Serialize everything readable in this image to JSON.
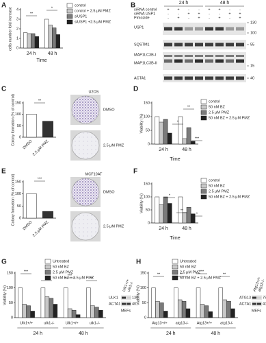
{
  "chart_data": [
    {
      "type": "bar",
      "panel": "A",
      "ylabel": "cells number fold increase",
      "xlabel": "Time",
      "categories": [
        "24 h",
        "48 h"
      ],
      "series": [
        {
          "name": "control",
          "color": "#ffffff",
          "values": [
            1.6,
            3.0
          ]
        },
        {
          "name": "control + 2.5 μM PMZ",
          "color": "#c8c8c8",
          "values": [
            1.5,
            2.4
          ]
        },
        {
          "name": "siUSP1",
          "color": "#7a7a7a",
          "values": [
            1.5,
            2.1
          ]
        },
        {
          "name": "siUSP1 +2.5 μM PMZ",
          "color": "#222222",
          "values": [
            1.2,
            1.4
          ]
        }
      ],
      "ylim": [
        0,
        4
      ],
      "yticks": [
        0,
        1,
        2,
        3,
        4
      ],
      "annotations": [
        "**",
        "*"
      ]
    },
    {
      "type": "bar",
      "panel": "C",
      "ylabel": "Colony formation (% of control)",
      "categories": [
        "DMSO",
        "2.5 μM PMZ"
      ],
      "values": [
        100,
        70
      ],
      "colors": [
        "#ffffff",
        "#333333"
      ],
      "ylim": [
        0,
        150
      ],
      "yticks": [
        0,
        50,
        100,
        150
      ],
      "annotations": [
        "**"
      ],
      "images": {
        "cell_line": "U2OS",
        "labels": [
          "DMSO",
          "2.5 μM PMZ"
        ]
      }
    },
    {
      "type": "bar",
      "panel": "D",
      "ylabel": "Viability (%)",
      "xlabel": "Time",
      "categories": [
        "24 h",
        "48 h"
      ],
      "series": [
        {
          "name": "control",
          "color": "#ffffff",
          "values": [
            100,
            100
          ]
        },
        {
          "name": "50 nM BZ",
          "color": "#c8c8c8",
          "values": [
            80,
            20
          ]
        },
        {
          "name": "2.5 μM PMZ",
          "color": "#7a7a7a",
          "values": [
            90,
            60
          ]
        },
        {
          "name": "50 nM BZ + 2.5 μM PMZ",
          "color": "#222222",
          "values": [
            40,
            10
          ]
        }
      ],
      "ylim": [
        0,
        150
      ],
      "yticks": [
        0,
        50,
        100,
        150
      ],
      "annotations": [
        "*",
        "**",
        "***"
      ]
    },
    {
      "type": "bar",
      "panel": "E",
      "ylabel": "Colony formation (% of control)",
      "categories": [
        "DMSO",
        "2.5 μM PMZ"
      ],
      "values": [
        100,
        28
      ],
      "colors": [
        "#ffffff",
        "#333333"
      ],
      "ylim": [
        0,
        150
      ],
      "yticks": [
        0,
        50,
        100,
        150
      ],
      "annotations": [
        "***"
      ],
      "images": {
        "cell_line": "MCF10AT",
        "labels": [
          "DMSO",
          "2.5 μM PMZ"
        ]
      }
    },
    {
      "type": "bar",
      "panel": "F",
      "ylabel": "Viability (%)",
      "xlabel": "Time",
      "categories": [
        "24 h",
        "48 h"
      ],
      "series": [
        {
          "name": "control",
          "color": "#ffffff",
          "values": [
            100,
            100
          ]
        },
        {
          "name": "50 nM BZ",
          "color": "#c8c8c8",
          "values": [
            70,
            40
          ]
        },
        {
          "name": "2.5 μM PMZ",
          "color": "#7a7a7a",
          "values": [
            100,
            60
          ]
        },
        {
          "name": "50 nM BZ + 2.5 μM PMZ",
          "color": "#222222",
          "values": [
            75,
            35
          ]
        }
      ],
      "ylim": [
        0,
        150
      ],
      "yticks": [
        0,
        50,
        100,
        150
      ],
      "annotations": [
        "*",
        "**",
        "*"
      ]
    },
    {
      "type": "bar",
      "panel": "G",
      "ylabel": "Viability (%)",
      "categories": [
        "Ulk1+/+",
        "ulk1-/-",
        "Ulk1+/+",
        "ulk1-/-"
      ],
      "groups": [
        "24 h",
        "48 h"
      ],
      "series": [
        {
          "name": "Untreated",
          "color": "#ffffff",
          "values": [
            100,
            100,
            100,
            100
          ]
        },
        {
          "name": "50 nM BZ",
          "color": "#c8c8c8",
          "values": [
            45,
            70,
            30,
            40
          ]
        },
        {
          "name": "2.5 μM PMZ",
          "color": "#7a7a7a",
          "values": [
            40,
            65,
            25,
            35
          ]
        },
        {
          "name": "50 nM BZ + 2.5 μM PMZ",
          "color": "#222222",
          "values": [
            22,
            45,
            10,
            25
          ]
        }
      ],
      "ylim": [
        0,
        150
      ],
      "yticks": [
        0,
        50,
        100,
        150
      ],
      "annotations": [
        "***",
        "**",
        "***",
        "**"
      ],
      "blot": {
        "genotypes": [
          "Ulk1+/+",
          "ulk1-/-"
        ],
        "proteins": [
          "ULK1",
          "ACTA1"
        ],
        "markers": [
          130,
          40
        ],
        "cells": "MEFs"
      }
    },
    {
      "type": "bar",
      "panel": "H",
      "ylabel": "Viability (%)",
      "categories": [
        "Atg13+/+",
        "atg13-/-",
        "Atg13+/+",
        "atg13-/-"
      ],
      "groups": [
        "24 h",
        "48 h"
      ],
      "series": [
        {
          "name": "Untreated",
          "color": "#ffffff",
          "values": [
            100,
            100,
            100,
            100
          ]
        },
        {
          "name": "50 nM BZ",
          "color": "#c8c8c8",
          "values": [
            55,
            60,
            45,
            60
          ]
        },
        {
          "name": "2.5 μM PMZ",
          "color": "#7a7a7a",
          "values": [
            50,
            55,
            40,
            55
          ]
        },
        {
          "name": "50 nM BZ + 2.5 μM PMZ",
          "color": "#222222",
          "values": [
            22,
            30,
            20,
            30
          ]
        }
      ],
      "ylim": [
        0,
        150
      ],
      "yticks": [
        0,
        50,
        100,
        150
      ],
      "annotations": [
        "**",
        "**",
        "***",
        "**"
      ],
      "blot": {
        "genotypes": [
          "Atg13+/+",
          "atg13-/-"
        ],
        "proteins": [
          "ATG13",
          "ACTA1"
        ],
        "markers": [
          75,
          40
        ],
        "cells": "MEFs"
      }
    }
  ],
  "blot_B": {
    "panel": "B",
    "timepoints": [
      "24 h",
      "48 h"
    ],
    "conditions": [
      "siRNA control",
      "siRNA USP1",
      "Pimozide"
    ],
    "signs": [
      [
        "+",
        "+",
        "-",
        "-",
        "+",
        "+",
        "-",
        "-"
      ],
      [
        "-",
        "-",
        "+",
        "+",
        "-",
        "-",
        "+",
        "+"
      ],
      [
        "-",
        "+",
        "-",
        "+",
        "-",
        "+",
        "-",
        "+"
      ]
    ],
    "proteins": [
      "USP1",
      "SQSTM1",
      "MAP1LC3B-I",
      "MAP1LC3B-II",
      "ACTA1"
    ],
    "markers": [
      130,
      100,
      55,
      15,
      40
    ]
  }
}
